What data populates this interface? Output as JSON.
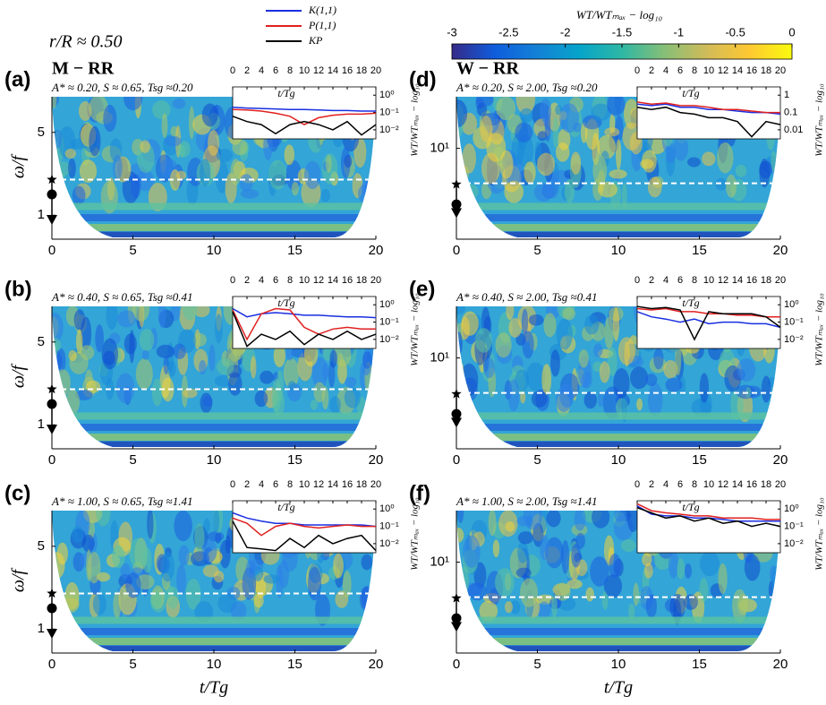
{
  "figure_title": "r/R ≈ 0.50",
  "colorbar": {
    "label": "WT/WTₘₐₓ − log₁₀",
    "lim": [
      -3,
      0
    ],
    "ticks": [
      -3,
      -2.5,
      -2,
      -1.5,
      -1,
      -0.5,
      0
    ],
    "colors": [
      "#352a87",
      "#0f5cdd",
      "#1481d6",
      "#06a4ca",
      "#2eb7a4",
      "#87bf77",
      "#d1bb59",
      "#fec832",
      "#f9fb0e"
    ]
  },
  "legend": [
    {
      "name": "K(1,1)",
      "color": "#1a2ee0"
    },
    {
      "name": "P(1,1)",
      "color": "#e02020"
    },
    {
      "name": "KP",
      "color": "#000000"
    }
  ],
  "chart_data": [
    {
      "type": "heatmap",
      "panel_label": "(a)",
      "header": "M − RR",
      "params": "A* ≈ 0.20, S ≈ 0.65, Tsg ≈0.20",
      "ylabel": "ω/f",
      "xlim": [
        0,
        20
      ],
      "xticks": [
        0,
        5,
        10,
        15,
        20
      ],
      "ylim": [
        0.65,
        10
      ],
      "yscale": "log",
      "yticks": [
        1,
        5
      ],
      "marker_values": [
        2.0,
        1.5,
        0.92
      ],
      "reference_line": 2.0,
      "inset": {
        "type": "line",
        "xlabel": "t/Tg",
        "ylabel": "WT/WTₘₐₓ − log₁₀",
        "x": [
          0,
          2,
          4,
          6,
          8,
          10,
          12,
          14,
          16,
          18,
          20
        ],
        "xlim": [
          0,
          20
        ],
        "xticks": [
          0,
          2,
          4,
          6,
          8,
          10,
          12,
          14,
          16,
          18,
          20
        ],
        "ylim": [
          0.003,
          3
        ],
        "yscale": "log",
        "yticks": [
          {
            "value": 1,
            "label": "10⁰"
          },
          {
            "value": 0.1,
            "label": "10⁻¹"
          },
          {
            "value": 0.01,
            "label": "10⁻²"
          }
        ],
        "series": [
          {
            "values": [
              0.2,
              0.18,
              0.17,
              0.16,
              0.15,
              0.15,
              0.14,
              0.13,
              0.13,
              0.12,
              0.12
            ]
          },
          {
            "values": [
              0.15,
              0.14,
              0.12,
              0.09,
              0.06,
              0.02,
              0.05,
              0.07,
              0.08,
              0.08,
              0.09
            ]
          },
          {
            "values": [
              0.06,
              0.03,
              0.02,
              0.006,
              0.02,
              0.03,
              0.02,
              0.01,
              0.03,
              0.005,
              0.02
            ]
          }
        ]
      }
    },
    {
      "type": "heatmap",
      "panel_label": "(b)",
      "params": "A* ≈ 0.40, S ≈ 0.65, Tsg ≈0.41",
      "ylabel": "ω/f",
      "xlim": [
        0,
        20
      ],
      "xticks": [
        0,
        5,
        10,
        15,
        20
      ],
      "ylim": [
        0.65,
        10
      ],
      "yscale": "log",
      "yticks": [
        1,
        5
      ],
      "marker_values": [
        2.0,
        1.5,
        0.92
      ],
      "reference_line": 2.0,
      "inset": {
        "type": "line",
        "xlabel": "t/Tg",
        "ylabel": "WT/WTₘₐₓ − log₁₀",
        "x": [
          0,
          2,
          4,
          6,
          8,
          10,
          12,
          14,
          16,
          18,
          20
        ],
        "xlim": [
          0,
          20
        ],
        "xticks": [
          0,
          2,
          4,
          6,
          8,
          10,
          12,
          14,
          16,
          18,
          20
        ],
        "ylim": [
          0.003,
          3
        ],
        "yscale": "log",
        "yticks": [
          {
            "value": 1,
            "label": "10⁰"
          },
          {
            "value": 0.1,
            "label": "10⁻¹"
          },
          {
            "value": 0.01,
            "label": "10⁻²"
          }
        ],
        "series": [
          {
            "values": [
              0.6,
              0.2,
              0.3,
              0.35,
              0.3,
              0.25,
              0.25,
              0.22,
              0.2,
              0.2,
              0.18
            ]
          },
          {
            "values": [
              0.5,
              0.01,
              0.3,
              0.6,
              0.5,
              0.05,
              0.02,
              0.04,
              0.05,
              0.04,
              0.04
            ]
          },
          {
            "values": [
              0.4,
              0.004,
              0.02,
              0.01,
              0.03,
              0.005,
              0.02,
              0.01,
              0.03,
              0.01,
              0.02
            ]
          }
        ]
      }
    },
    {
      "type": "heatmap",
      "panel_label": "(c)",
      "params": "A* ≈ 1.00, S ≈ 0.65, Tsg ≈1.41",
      "ylabel": "ω/f",
      "xlabel": "t/Tg",
      "xlim": [
        0,
        20
      ],
      "xticks": [
        0,
        5,
        10,
        15,
        20
      ],
      "ylim": [
        0.65,
        10
      ],
      "yscale": "log",
      "yticks": [
        1,
        5
      ],
      "marker_values": [
        2.0,
        1.5,
        0.92
      ],
      "reference_line": 2.0,
      "inset": {
        "type": "line",
        "xlabel": "t/Tg",
        "ylabel": "WT/WTₘₐₓ − log₁₀",
        "x": [
          0,
          2,
          4,
          6,
          8,
          10,
          12,
          14,
          16,
          18,
          20
        ],
        "xlim": [
          0,
          20
        ],
        "xticks": [
          0,
          2,
          4,
          6,
          8,
          10,
          12,
          14,
          16,
          18,
          20
        ],
        "ylim": [
          0.003,
          3
        ],
        "yscale": "log",
        "yticks": [
          {
            "value": 1,
            "label": "10⁰"
          },
          {
            "value": 0.1,
            "label": "10⁻¹"
          },
          {
            "value": 0.01,
            "label": "10⁻²"
          }
        ],
        "series": [
          {
            "values": [
              0.6,
              0.3,
              0.2,
              0.15,
              0.15,
              0.12,
              0.12,
              0.12,
              0.12,
              0.12,
              0.1
            ]
          },
          {
            "values": [
              0.3,
              0.15,
              0.03,
              0.1,
              0.15,
              0.1,
              0.08,
              0.1,
              0.12,
              0.1,
              0.1
            ]
          },
          {
            "values": [
              0.2,
              0.006,
              0.005,
              0.004,
              0.02,
              0.006,
              0.03,
              0.01,
              0.02,
              0.03,
              0.004
            ]
          }
        ]
      }
    },
    {
      "type": "heatmap",
      "panel_label": "(d)",
      "header": "W − RR",
      "params": "A* ≈ 0.20, S ≈ 2.00, Tsg ≈0.20",
      "xlim": [
        0,
        20
      ],
      "xticks": [
        0,
        5,
        10,
        15,
        20
      ],
      "ylim": [
        1.8,
        27
      ],
      "yscale": "log",
      "yticks": [
        {
          "value": 10,
          "label": "10¹"
        }
      ],
      "marker_values": [
        5.0,
        3.4,
        2.9
      ],
      "reference_line": 5.1,
      "inset": {
        "type": "line",
        "xlabel": "t/Tg",
        "ylabel": "WT/WTₘₐₓ − log₁₀",
        "x": [
          0,
          2,
          4,
          6,
          8,
          10,
          12,
          14,
          16,
          18,
          20
        ],
        "xlim": [
          0,
          20
        ],
        "xticks": [
          0,
          2,
          4,
          6,
          8,
          10,
          12,
          14,
          16,
          18,
          20
        ],
        "ylim": [
          0.003,
          3
        ],
        "yscale": "log",
        "yticks": [
          1,
          0.1,
          0.01
        ],
        "series": [
          {
            "values": [
              0.3,
              0.25,
              0.3,
              0.2,
              0.2,
              0.15,
              0.15,
              0.12,
              0.1,
              0.1,
              0.08
            ]
          },
          {
            "values": [
              0.4,
              0.3,
              0.35,
              0.25,
              0.25,
              0.2,
              0.15,
              0.15,
              0.12,
              0.1,
              0.1
            ]
          },
          {
            "values": [
              0.2,
              0.15,
              0.2,
              0.1,
              0.08,
              0.05,
              0.05,
              0.03,
              0.004,
              0.03,
              0.02
            ]
          }
        ]
      }
    },
    {
      "type": "heatmap",
      "panel_label": "(e)",
      "params": "A* ≈ 0.40, S ≈ 2.00, Tsg ≈0.41",
      "xlim": [
        0,
        20
      ],
      "xticks": [
        0,
        5,
        10,
        15,
        20
      ],
      "ylim": [
        1.8,
        27
      ],
      "yscale": "log",
      "yticks": [
        {
          "value": 10,
          "label": "10¹"
        }
      ],
      "marker_values": [
        5.0,
        3.4,
        2.9
      ],
      "reference_line": 5.1,
      "inset": {
        "type": "line",
        "xlabel": "t/Tg",
        "ylabel": "WT/WTₘₐₓ − log₁₀",
        "x": [
          0,
          2,
          4,
          6,
          8,
          10,
          12,
          14,
          16,
          18,
          20
        ],
        "xlim": [
          0,
          20
        ],
        "xticks": [
          0,
          2,
          4,
          6,
          8,
          10,
          12,
          14,
          16,
          18,
          20
        ],
        "ylim": [
          0.003,
          3
        ],
        "yscale": "log",
        "yticks": [
          {
            "value": 1,
            "label": "10⁰"
          },
          {
            "value": 0.1,
            "label": "10⁻¹"
          },
          {
            "value": 0.01,
            "label": "10⁻²"
          }
        ],
        "series": [
          {
            "values": [
              0.4,
              0.2,
              0.15,
              0.1,
              0.15,
              0.08,
              0.1,
              0.1,
              0.08,
              0.08,
              0.05
            ]
          },
          {
            "values": [
              0.6,
              0.5,
              0.6,
              0.4,
              0.4,
              0.3,
              0.3,
              0.25,
              0.25,
              0.2,
              0.2
            ]
          },
          {
            "values": [
              0.8,
              0.6,
              0.7,
              0.5,
              0.01,
              0.4,
              0.3,
              0.3,
              0.3,
              0.2,
              0.05
            ]
          }
        ]
      }
    },
    {
      "type": "heatmap",
      "panel_label": "(f)",
      "params": "A* ≈ 1.00, S ≈ 2.00, Tsg ≈1.41",
      "xlabel": "t/Tg",
      "xlim": [
        0,
        20
      ],
      "xticks": [
        0,
        5,
        10,
        15,
        20
      ],
      "ylim": [
        1.8,
        27
      ],
      "yscale": "log",
      "yticks": [
        {
          "value": 10,
          "label": "10¹"
        }
      ],
      "marker_values": [
        5.0,
        3.4,
        2.9
      ],
      "reference_line": 5.1,
      "inset": {
        "type": "line",
        "xlabel": "t/Tg",
        "ylabel": "WT/WTₘₐₓ − log₁₀",
        "x": [
          0,
          2,
          4,
          6,
          8,
          10,
          12,
          14,
          16,
          18,
          20
        ],
        "xlim": [
          0,
          20
        ],
        "xticks": [
          0,
          2,
          4,
          6,
          8,
          10,
          12,
          14,
          16,
          18,
          20
        ],
        "ylim": [
          0.003,
          3
        ],
        "yscale": "log",
        "yticks": [
          {
            "value": 1,
            "label": "10⁰"
          },
          {
            "value": 0.1,
            "label": "10⁻¹"
          },
          {
            "value": 0.01,
            "label": "10⁻²"
          }
        ],
        "series": [
          {
            "values": [
              1.5,
              0.5,
              0.4,
              0.4,
              0.3,
              0.3,
              0.25,
              0.2,
              0.2,
              0.2,
              0.2
            ]
          },
          {
            "values": [
              2,
              0.8,
              0.6,
              0.5,
              0.4,
              0.4,
              0.3,
              0.3,
              0.3,
              0.25,
              0.25
            ]
          },
          {
            "values": [
              1.2,
              0.6,
              0.3,
              0.4,
              0.2,
              0.3,
              0.15,
              0.2,
              0.1,
              0.15,
              0.1
            ]
          }
        ]
      }
    }
  ]
}
